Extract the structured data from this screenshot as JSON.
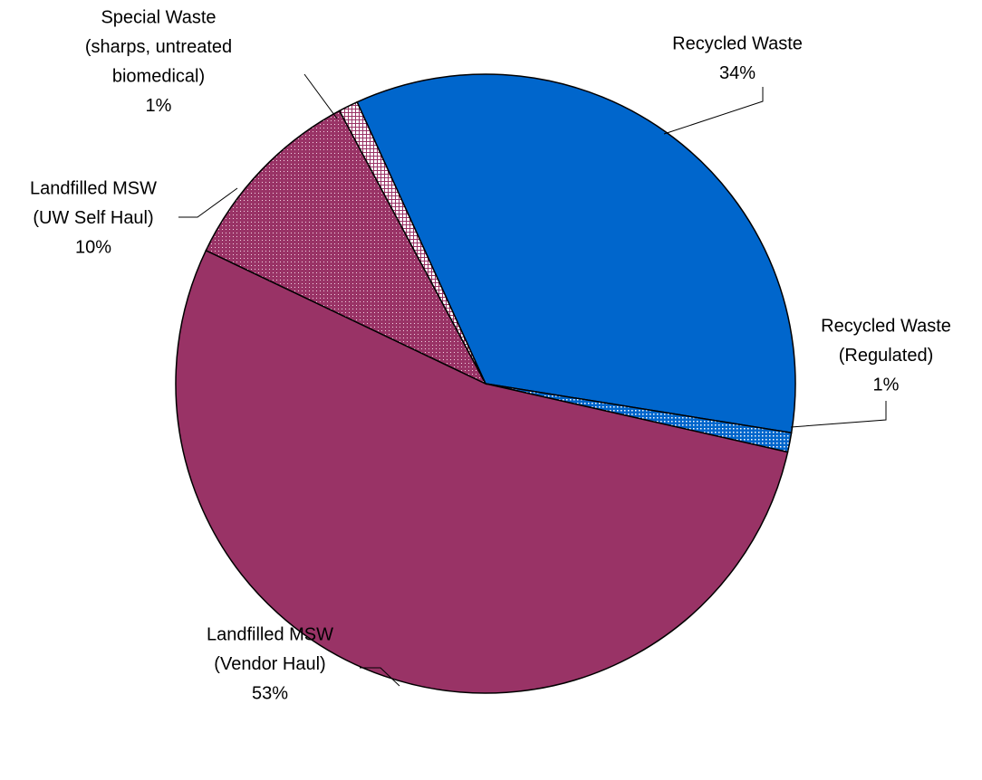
{
  "chart_data": {
    "type": "pie",
    "categories": [
      [
        "Recycled Waste"
      ],
      [
        "Recycled Waste",
        "(Regulated)"
      ],
      [
        "Landfilled MSW",
        "(Vendor Haul)"
      ],
      [
        "Landfilled MSW",
        "(UW Self Haul)"
      ],
      [
        "Special Waste",
        "(sharps, untreated",
        "biomedical)"
      ]
    ],
    "values": [
      34,
      1,
      53,
      10,
      1
    ],
    "value_labels": [
      "34%",
      "1%",
      "53%",
      "10%",
      "1%"
    ],
    "colors": [
      "#0066cc",
      "#0066cc",
      "#993366",
      "#993366",
      "#993366"
    ],
    "patterns": [
      "solid",
      "dots",
      "solid",
      "dense-dots",
      "crosshatch"
    ]
  }
}
